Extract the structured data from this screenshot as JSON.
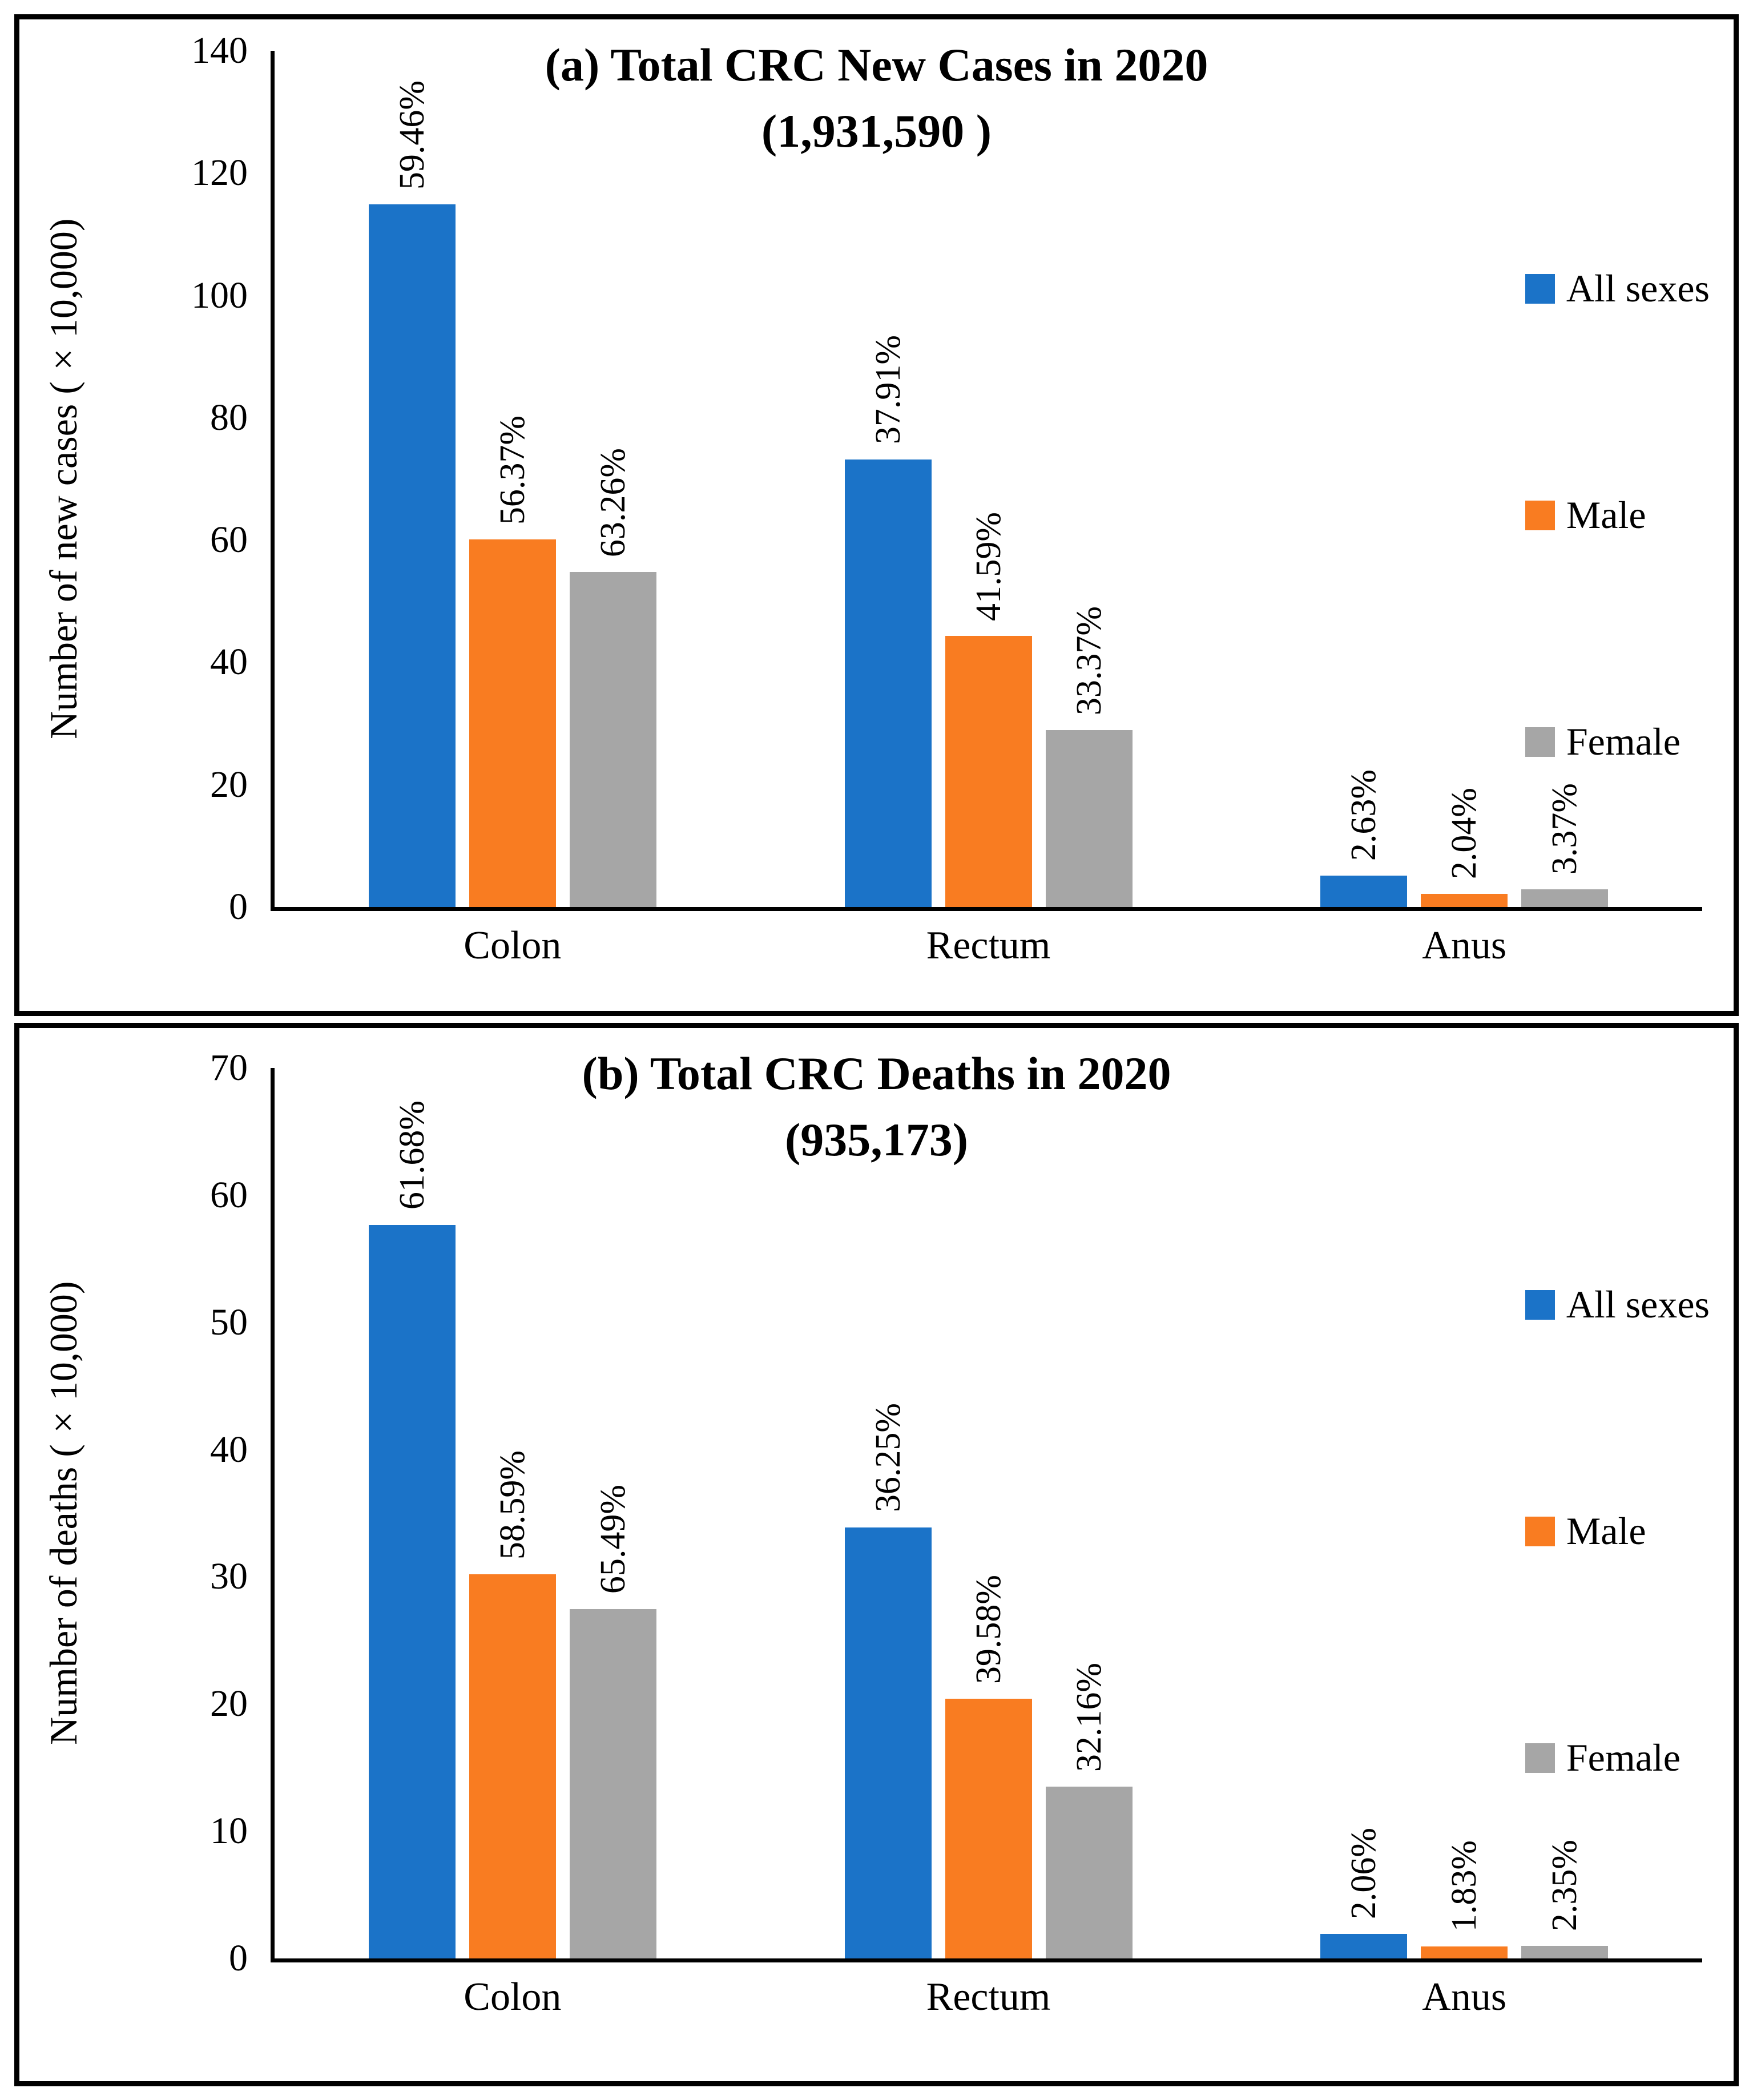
{
  "figure": {
    "description_note": "Two stacked bar-chart panels comparing colorectal cancer sites by sex",
    "legend_labels": [
      "All sexes",
      "Male",
      "Female"
    ]
  },
  "colors": {
    "all_sexes": "#1B73C8",
    "male": "#F97C21",
    "female": "#A6A6A6",
    "axis": "#000000",
    "background": "#FFFFFF"
  },
  "chart_data": [
    {
      "type": "bar",
      "panel": "a",
      "title_line1": "(a) Total CRC New Cases in 2020",
      "title_line2": "(1,931,590 )",
      "categories": [
        "Colon",
        "Rectum",
        "Anus"
      ],
      "xlabel": "",
      "ylabel": "Number of new cases (×10,000)",
      "y_axis": {
        "title": "Number of new cases (×10,000)",
        "min": 0,
        "max": 140,
        "step": 20
      },
      "ylim": [
        0,
        140
      ],
      "grid": false,
      "legend_position": "right",
      "bar_label_style": "rotated-90-above-bar",
      "series": [
        {
          "name": "All sexes",
          "color_key": "all_sexes",
          "color": "#1B73C8",
          "values": [
            114.85,
            73.22,
            5.09
          ],
          "bar_labels": [
            "59.46%",
            "37.91%",
            "2.63%"
          ]
        },
        {
          "name": "Male",
          "color_key": "male",
          "color": "#F97C21",
          "values": [
            60.09,
            44.33,
            2.17
          ],
          "bar_labels": [
            "56.37%",
            "41.59%",
            "2.04%"
          ]
        },
        {
          "name": "Female",
          "color_key": "female",
          "color": "#A6A6A6",
          "values": [
            54.76,
            28.89,
            2.92
          ],
          "bar_labels": [
            "63.26%",
            "33.37%",
            "3.37%"
          ]
        }
      ]
    },
    {
      "type": "bar",
      "panel": "b",
      "title_line1": "(b) Total CRC Deaths in 2020",
      "title_line2": "(935,173)",
      "categories": [
        "Colon",
        "Rectum",
        "Anus"
      ],
      "xlabel": "",
      "ylabel": "Number of deaths (×10,000)",
      "y_axis": {
        "title": "Number of deaths (×10,000)",
        "min": 0,
        "max": 70,
        "step": 10
      },
      "ylim": [
        0,
        70
      ],
      "grid": false,
      "legend_position": "right",
      "bar_label_style": "rotated-90-above-bar",
      "series": [
        {
          "name": "All sexes",
          "color_key": "all_sexes",
          "color": "#1B73C8",
          "values": [
            57.68,
            33.9,
            1.93
          ],
          "bar_labels": [
            "61.68%",
            "36.25%",
            "2.06%"
          ]
        },
        {
          "name": "Male",
          "color_key": "male",
          "color": "#F97C21",
          "values": [
            30.21,
            20.41,
            0.94
          ],
          "bar_labels": [
            "58.59%",
            "39.58%",
            "1.83%"
          ]
        },
        {
          "name": "Female",
          "color_key": "female",
          "color": "#A6A6A6",
          "values": [
            27.48,
            13.49,
            0.99
          ],
          "bar_labels": [
            "65.49%",
            "32.16%",
            "2.35%"
          ]
        }
      ]
    }
  ]
}
